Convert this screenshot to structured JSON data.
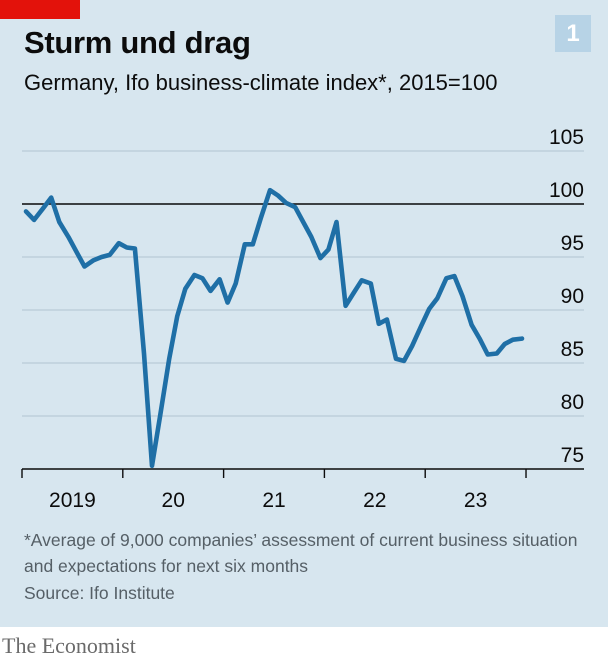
{
  "header": {
    "title": "Sturm und drag",
    "subtitle": "Germany, Ifo business-climate index*, 2015=100",
    "chart_number": "1"
  },
  "footer": {
    "footnote": "*Average of 9,000 companies’ assessment of current business situation and expectations for next six months",
    "source": "Source: Ifo Institute",
    "brand": "The Economist"
  },
  "colors": {
    "background": "#d7e6ef",
    "line": "#1f6fa6",
    "accent": "#e3120b",
    "grid": "#b9cbd6",
    "axis": "#0c0c0c"
  },
  "chart_data": {
    "type": "line",
    "title": "Sturm und drag",
    "subtitle": "Germany, Ifo business-climate index*, 2015=100",
    "xlabel": "",
    "ylabel": "",
    "x_domain": [
      2019.0,
      2023.98
    ],
    "ylim": [
      75,
      105
    ],
    "y_ticks": [
      75,
      80,
      85,
      90,
      95,
      100,
      105
    ],
    "reference_line": 100,
    "x_tick_labels": [
      {
        "x": 2019.5,
        "label": "2019"
      },
      {
        "x": 2020.5,
        "label": "20"
      },
      {
        "x": 2021.5,
        "label": "21"
      },
      {
        "x": 2022.5,
        "label": "22"
      },
      {
        "x": 2023.5,
        "label": "23"
      }
    ],
    "series": [
      {
        "name": "Ifo business-climate index",
        "x": [
          2019.04,
          2019.12,
          2019.21,
          2019.29,
          2019.37,
          2019.46,
          2019.54,
          2019.62,
          2019.71,
          2019.79,
          2019.87,
          2019.96,
          2020.04,
          2020.12,
          2020.21,
          2020.29,
          2020.37,
          2020.46,
          2020.54,
          2020.62,
          2020.71,
          2020.79,
          2020.87,
          2020.96,
          2021.04,
          2021.12,
          2021.21,
          2021.29,
          2021.37,
          2021.46,
          2021.54,
          2021.62,
          2021.71,
          2021.79,
          2021.87,
          2021.96,
          2022.04,
          2022.12,
          2022.21,
          2022.29,
          2022.37,
          2022.46,
          2022.54,
          2022.62,
          2022.71,
          2022.79,
          2022.87,
          2022.96,
          2023.04,
          2023.12,
          2023.21,
          2023.29,
          2023.37,
          2023.46,
          2023.54,
          2023.62,
          2023.71,
          2023.79,
          2023.87,
          2023.96
        ],
        "values": [
          99.3,
          98.5,
          99.6,
          100.6,
          98.3,
          96.9,
          95.5,
          94.1,
          94.7,
          95.0,
          95.2,
          96.3,
          95.9,
          95.8,
          85.9,
          75.3,
          80.0,
          85.4,
          89.4,
          92.0,
          93.3,
          93.0,
          91.8,
          92.9,
          90.7,
          92.5,
          96.2,
          96.2,
          98.7,
          101.3,
          100.8,
          100.1,
          99.7,
          98.3,
          96.9,
          94.9,
          95.7,
          98.3,
          90.4,
          91.6,
          92.8,
          92.5,
          88.7,
          89.1,
          85.4,
          85.2,
          86.6,
          88.5,
          90.1,
          91.1,
          93.0,
          93.2,
          91.3,
          88.6,
          87.3,
          85.8,
          85.9,
          86.8,
          87.2,
          87.3
        ]
      }
    ]
  }
}
